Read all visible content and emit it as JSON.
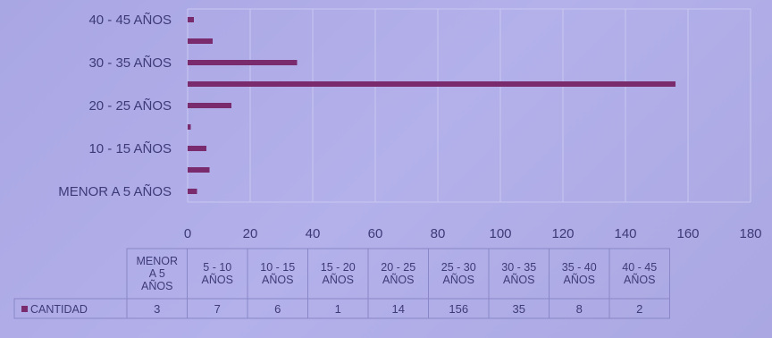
{
  "colors": {
    "background": "#adaae6",
    "bar": "#7a2b6d",
    "grid": "#c9c7f0",
    "text": "#3d3a78"
  },
  "chart_data": {
    "type": "bar",
    "orientation": "horizontal",
    "categories": [
      "MENOR A 5 AÑOS",
      "5 - 10 AÑOS",
      "10 - 15 AÑOS",
      "15 - 20 AÑOS",
      "20 - 25 AÑOS",
      "25 - 30 AÑOS",
      "30 - 35 AÑOS",
      "35 - 40 AÑOS",
      "40 - 45 AÑOS"
    ],
    "category_labels_table": [
      [
        "MENOR",
        "A 5",
        "AÑOS"
      ],
      [
        "5 - 10",
        "AÑOS"
      ],
      [
        "10 - 15",
        "AÑOS"
      ],
      [
        "15 - 20",
        "AÑOS"
      ],
      [
        "20 - 25",
        "AÑOS"
      ],
      [
        "25 - 30",
        "AÑOS"
      ],
      [
        "30 - 35",
        "AÑOS"
      ],
      [
        "35 - 40",
        "AÑOS"
      ],
      [
        "40 - 45",
        "AÑOS"
      ]
    ],
    "y_tick_labels_shown": [
      "MENOR A 5 AÑOS",
      "10 - 15 AÑOS",
      "20 - 25 AÑOS",
      "30 - 35 AÑOS",
      "40 - 45 AÑOS"
    ],
    "series": [
      {
        "name": "CANTIDAD",
        "values": [
          3,
          7,
          6,
          1,
          14,
          156,
          35,
          8,
          2
        ]
      }
    ],
    "xlim": [
      0,
      180
    ],
    "x_ticks": [
      0,
      20,
      40,
      60,
      80,
      100,
      120,
      140,
      160,
      180
    ],
    "grid": true,
    "legend": "data-table-left",
    "data_table": true
  }
}
